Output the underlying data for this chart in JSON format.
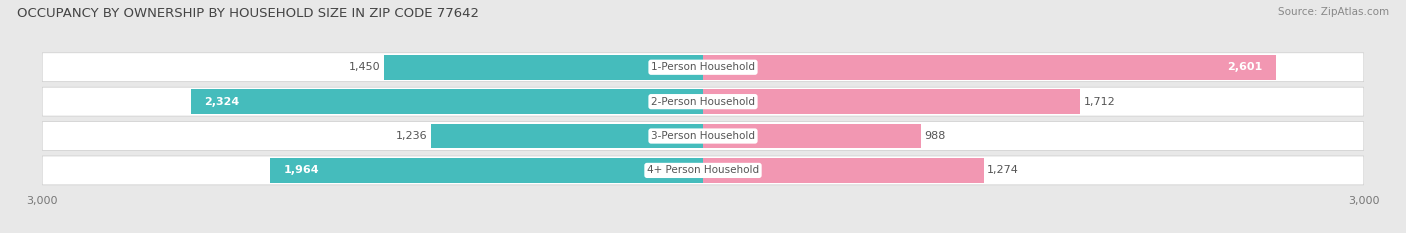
{
  "title": "OCCUPANCY BY OWNERSHIP BY HOUSEHOLD SIZE IN ZIP CODE 77642",
  "source": "Source: ZipAtlas.com",
  "categories": [
    "1-Person Household",
    "2-Person Household",
    "3-Person Household",
    "4+ Person Household"
  ],
  "owner_values": [
    1450,
    2324,
    1236,
    1964
  ],
  "renter_values": [
    2601,
    1712,
    988,
    1274
  ],
  "owner_color": "#45BCBC",
  "renter_color": "#F297B2",
  "xlim": 3000,
  "background_color": "#e8e8e8",
  "row_bg_color": "#f2f2f2",
  "title_fontsize": 9.5,
  "source_fontsize": 7.5,
  "label_fontsize": 8,
  "tick_fontsize": 8,
  "category_fontsize": 7.5,
  "value_fontsize": 8,
  "inside_threshold_owner": 1800,
  "inside_threshold_renter": 2400
}
